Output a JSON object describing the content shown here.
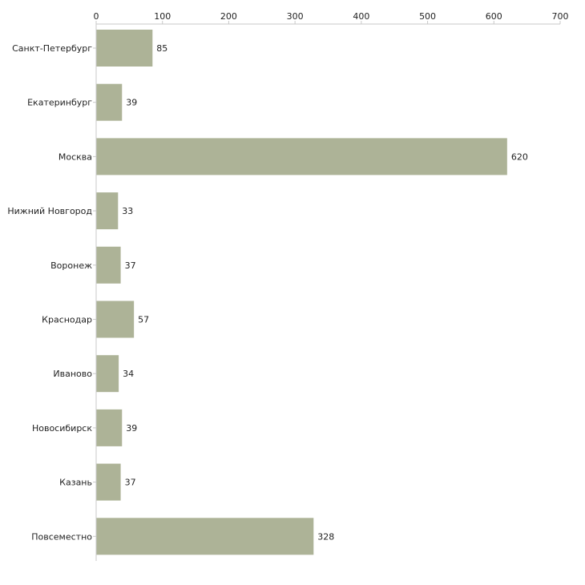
{
  "chart_data": {
    "type": "bar",
    "orientation": "horizontal",
    "title": "",
    "xlabel": "",
    "ylabel": "",
    "categories": [
      "Санкт-Петербург",
      "Екатеринбург",
      "Москва",
      "Нижний Новгород",
      "Воронеж",
      "Краснодар",
      "Иваново",
      "Новосибирск",
      "Казань",
      "Повсеместно"
    ],
    "values": [
      85,
      39,
      620,
      33,
      37,
      57,
      34,
      39,
      37,
      328
    ],
    "value_labels": [
      "85",
      "39",
      "620",
      "33",
      "37",
      "57",
      "34",
      "39",
      "37",
      "328"
    ],
    "xlim": [
      0,
      700
    ],
    "ticks": [
      0,
      100,
      200,
      300,
      400,
      500,
      600,
      700
    ],
    "tick_labels": [
      "0",
      "100",
      "200",
      "300",
      "400",
      "500",
      "600",
      "700"
    ],
    "axis_position": "top",
    "grid": false,
    "legend": "none",
    "bar_color": "#adb397"
  }
}
